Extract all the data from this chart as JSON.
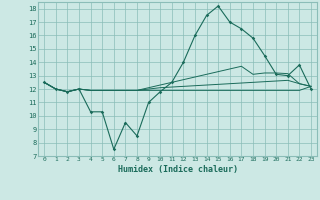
{
  "xlabel": "Humidex (Indice chaleur)",
  "background_color": "#cce8e4",
  "grid_color": "#8bbdb8",
  "line_color": "#1a6b5a",
  "xlim": [
    -0.5,
    23.5
  ],
  "ylim": [
    7,
    18.5
  ],
  "yticks": [
    7,
    8,
    9,
    10,
    11,
    12,
    13,
    14,
    15,
    16,
    17,
    18
  ],
  "xticks": [
    0,
    1,
    2,
    3,
    4,
    5,
    6,
    7,
    8,
    9,
    10,
    11,
    12,
    13,
    14,
    15,
    16,
    17,
    18,
    19,
    20,
    21,
    22,
    23
  ],
  "main_series": [
    12.5,
    12.0,
    11.8,
    12.0,
    10.3,
    10.3,
    7.5,
    9.5,
    8.5,
    11.0,
    11.8,
    12.5,
    14.0,
    16.0,
    17.5,
    18.2,
    17.0,
    16.5,
    15.8,
    14.5,
    13.1,
    13.0,
    13.8,
    12.0
  ],
  "trend1": [
    12.5,
    12.0,
    11.8,
    12.0,
    11.9,
    11.9,
    11.9,
    11.9,
    11.9,
    12.0,
    12.1,
    12.15,
    12.2,
    12.25,
    12.3,
    12.35,
    12.4,
    12.45,
    12.5,
    12.55,
    12.6,
    12.65,
    12.4,
    12.2
  ],
  "trend2": [
    12.5,
    12.0,
    11.8,
    12.0,
    11.9,
    11.9,
    11.9,
    11.9,
    11.9,
    12.1,
    12.3,
    12.5,
    12.7,
    12.9,
    13.1,
    13.3,
    13.5,
    13.7,
    13.1,
    13.2,
    13.2,
    13.15,
    12.4,
    12.2
  ],
  "trend3": [
    12.5,
    12.0,
    11.8,
    12.0,
    11.9,
    11.9,
    11.9,
    11.9,
    11.9,
    11.9,
    11.9,
    11.9,
    11.9,
    11.9,
    11.9,
    11.9,
    11.9,
    11.9,
    11.9,
    11.9,
    11.9,
    11.9,
    11.9,
    12.2
  ]
}
